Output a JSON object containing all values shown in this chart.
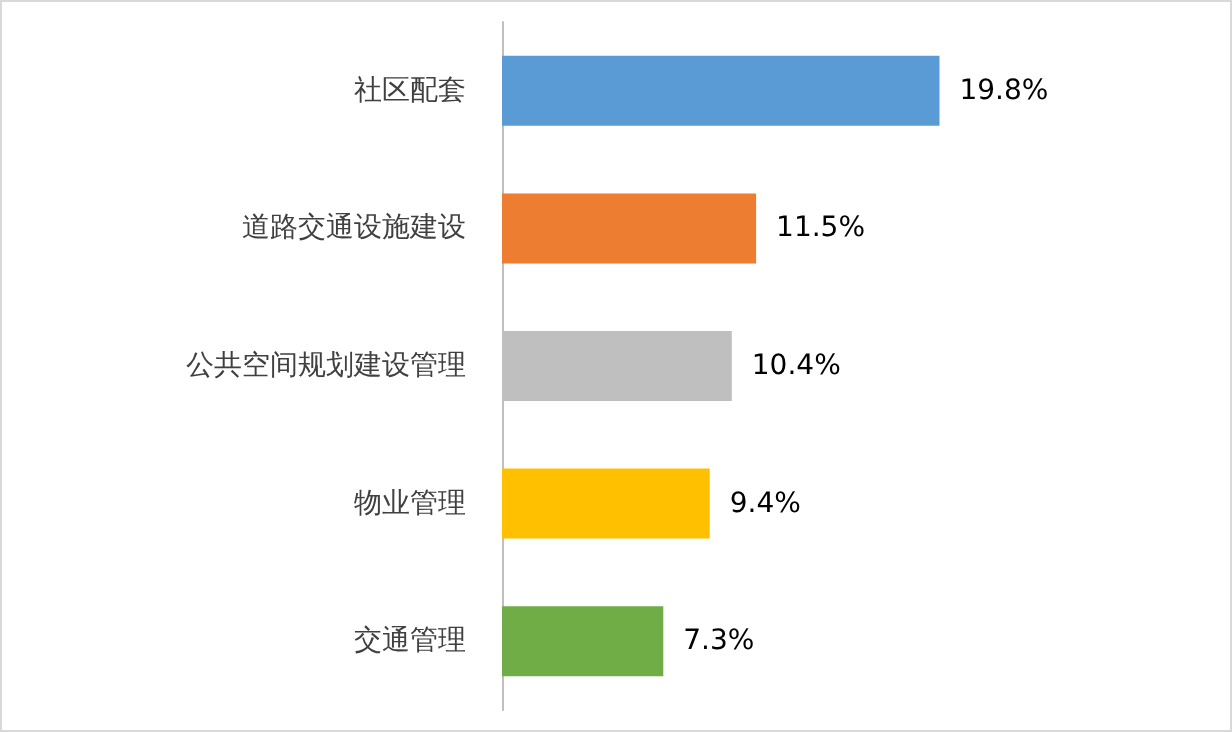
{
  "chart_data": {
    "type": "bar",
    "orientation": "horizontal",
    "categories": [
      "社区配套",
      "道路交通设施建设",
      "公共空间规划建设管理",
      "物业管理",
      "交通管理"
    ],
    "values": [
      19.8,
      11.5,
      10.4,
      9.4,
      7.3
    ],
    "colors": [
      "#5b9bd5",
      "#ed7d31",
      "#bfbfbf",
      "#ffc000",
      "#70ad47"
    ],
    "value_labels": [
      "19.8%",
      "11.5%",
      "10.4%",
      "9.4%",
      "7.3%"
    ]
  }
}
